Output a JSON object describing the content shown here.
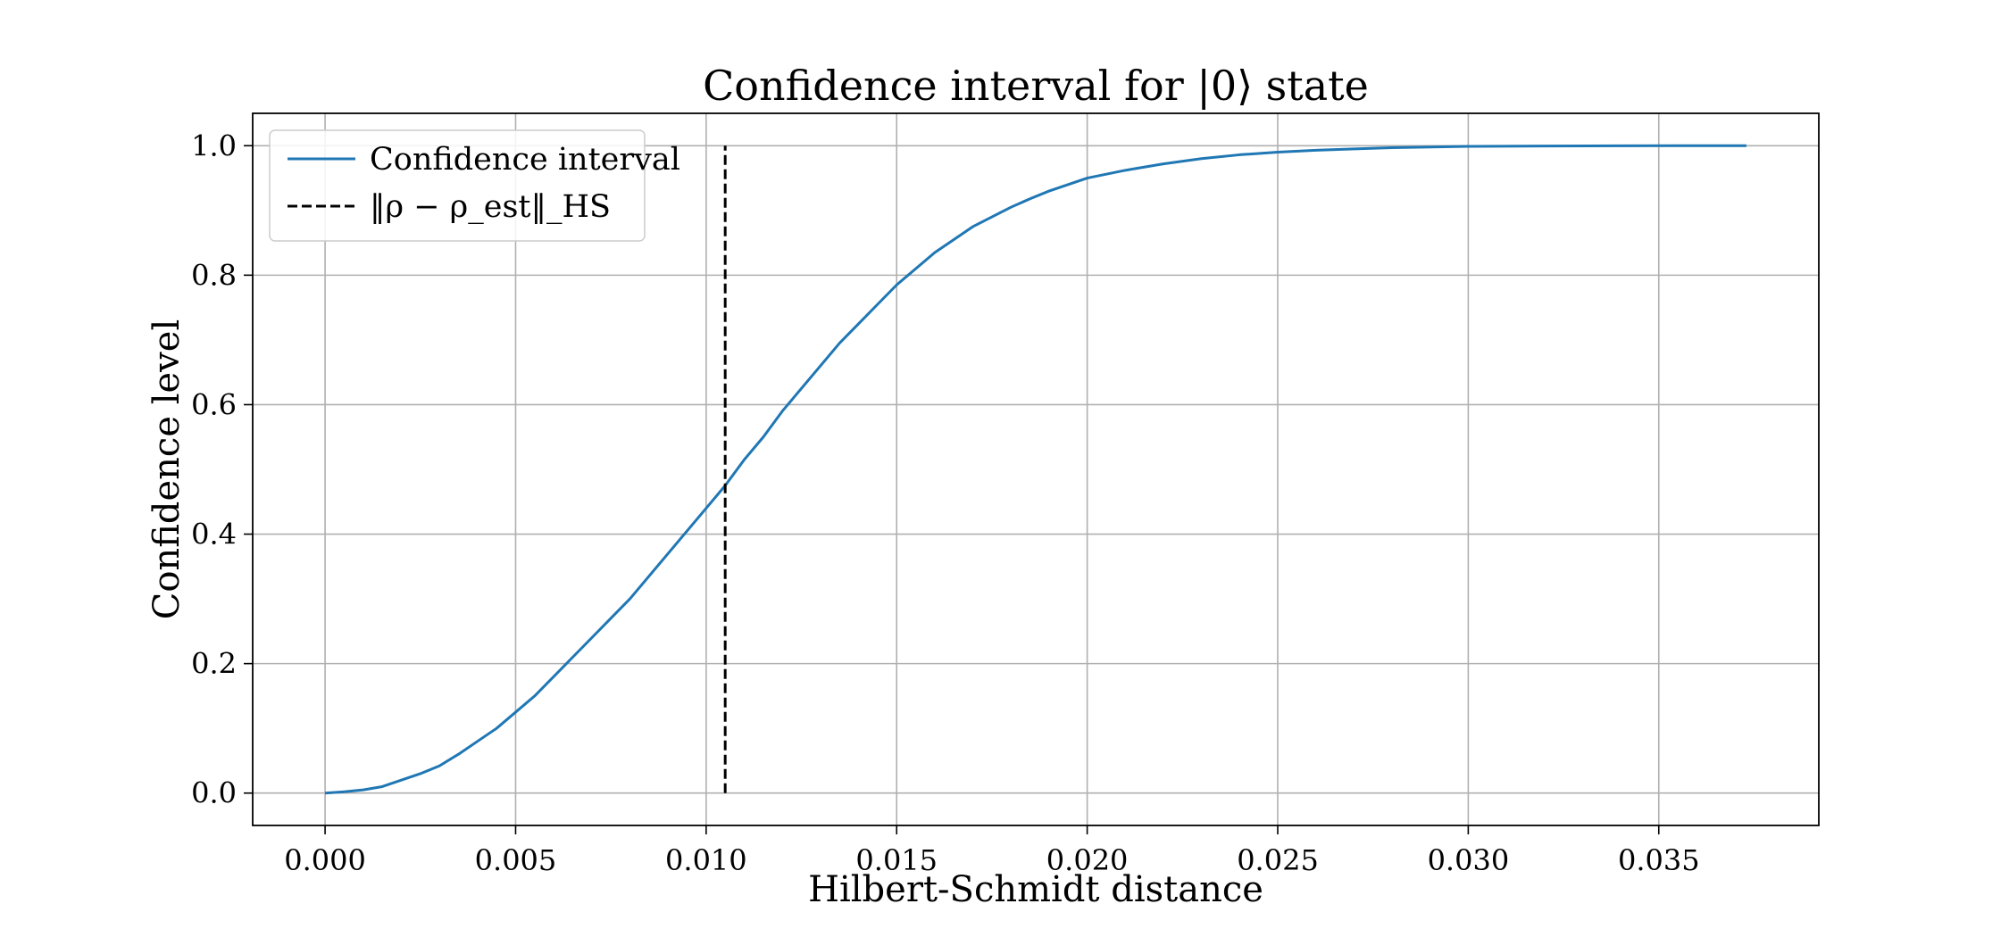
{
  "chart_data": {
    "type": "line",
    "title": "Confidence interval for |0⟩ state",
    "xlabel": "Hilbert-Schmidt distance",
    "ylabel": "Confidence level",
    "xlim": [
      -0.0019,
      0.0392
    ],
    "ylim": [
      -0.05,
      1.05
    ],
    "xticks": [
      0.0,
      0.005,
      0.01,
      0.015,
      0.02,
      0.025,
      0.03,
      0.035
    ],
    "xtick_labels": [
      "0.000",
      "0.005",
      "0.010",
      "0.015",
      "0.020",
      "0.025",
      "0.030",
      "0.035"
    ],
    "yticks": [
      0.0,
      0.2,
      0.4,
      0.6,
      0.8,
      1.0
    ],
    "ytick_labels": [
      "0.0",
      "0.2",
      "0.4",
      "0.6",
      "0.8",
      "1.0"
    ],
    "grid": true,
    "legend_position": "top-left",
    "series": [
      {
        "name": "Confidence interval",
        "color": "#1f77b4",
        "style": "solid",
        "x": [
          0.0,
          0.0005,
          0.001,
          0.0015,
          0.002,
          0.0025,
          0.003,
          0.0035,
          0.004,
          0.0045,
          0.005,
          0.0055,
          0.006,
          0.0065,
          0.007,
          0.0075,
          0.008,
          0.0085,
          0.009,
          0.0095,
          0.01,
          0.0105,
          0.011,
          0.0115,
          0.012,
          0.0125,
          0.013,
          0.0135,
          0.014,
          0.0145,
          0.015,
          0.0155,
          0.016,
          0.0165,
          0.017,
          0.0175,
          0.018,
          0.0185,
          0.019,
          0.0195,
          0.02,
          0.021,
          0.022,
          0.023,
          0.024,
          0.025,
          0.026,
          0.027,
          0.028,
          0.029,
          0.03,
          0.032,
          0.034,
          0.0355,
          0.0373
        ],
        "y": [
          0.0,
          0.002,
          0.005,
          0.01,
          0.02,
          0.03,
          0.042,
          0.06,
          0.08,
          0.1,
          0.125,
          0.15,
          0.18,
          0.21,
          0.24,
          0.27,
          0.3,
          0.335,
          0.37,
          0.405,
          0.44,
          0.475,
          0.515,
          0.55,
          0.59,
          0.625,
          0.66,
          0.695,
          0.725,
          0.755,
          0.785,
          0.81,
          0.835,
          0.855,
          0.875,
          0.89,
          0.905,
          0.918,
          0.93,
          0.94,
          0.95,
          0.962,
          0.972,
          0.98,
          0.986,
          0.99,
          0.993,
          0.995,
          0.997,
          0.998,
          0.999,
          0.9995,
          0.9998,
          1.0,
          1.0
        ]
      },
      {
        "name": "‖ρ − ρ_est‖_HS",
        "color": "#000000",
        "style": "dashed",
        "x": [
          0.0105,
          0.0105
        ],
        "y": [
          0.0,
          1.0
        ]
      }
    ]
  }
}
